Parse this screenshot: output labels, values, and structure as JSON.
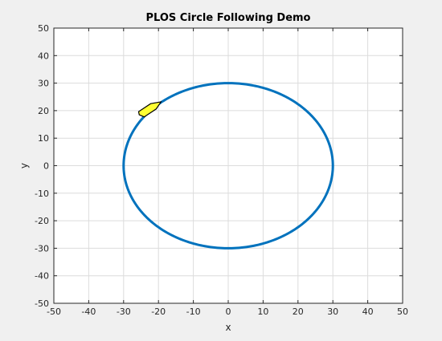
{
  "chart_data": {
    "type": "line",
    "title": "PLOS Circle Following Demo",
    "xlabel": "x",
    "ylabel": "y",
    "xlim": [
      -50,
      50
    ],
    "ylim": [
      -50,
      50
    ],
    "xticks": [
      -50,
      -40,
      -30,
      -20,
      -10,
      0,
      10,
      20,
      30,
      40,
      50
    ],
    "yticks": [
      -50,
      -40,
      -30,
      -20,
      -10,
      0,
      10,
      20,
      30,
      40,
      50
    ],
    "grid": true,
    "series": [
      {
        "type": "circle",
        "center": [
          0,
          0
        ],
        "radius": 30,
        "color": "#0072bd"
      }
    ],
    "vehicle": {
      "shape": "boat",
      "position": [
        -22.5,
        20.5
      ],
      "heading_deg": 40,
      "fill_color": "#ffff33",
      "edge_color": "#000000"
    }
  }
}
